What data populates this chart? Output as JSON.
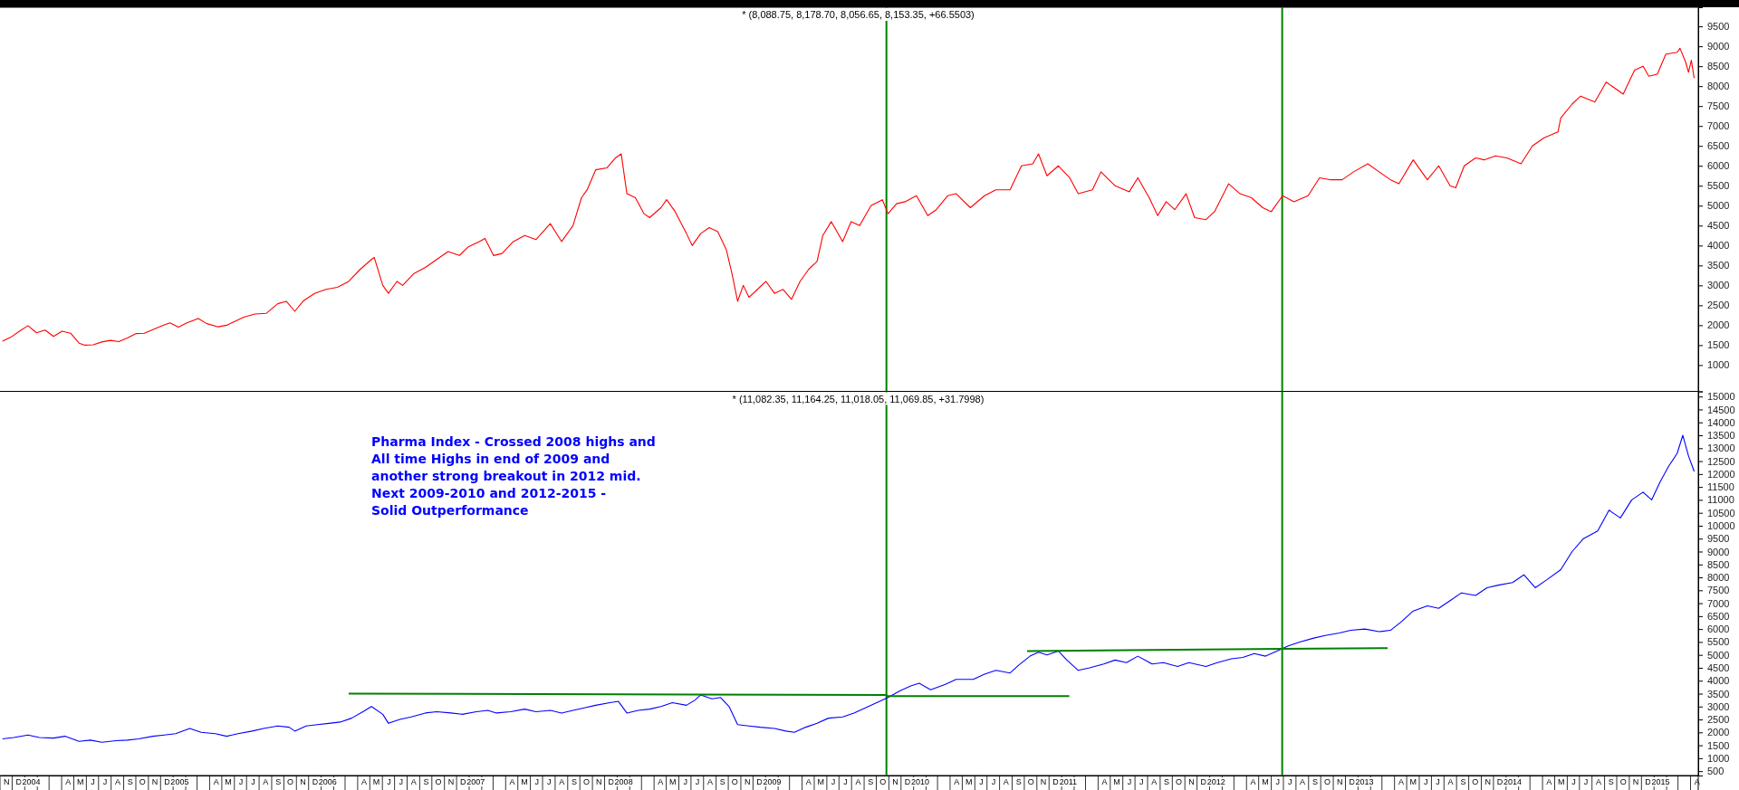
{
  "chart_data": [
    {
      "type": "line",
      "title": "* (8,088.75, 8,178.70, 8,056.65, 8,153.35, +66.5503)",
      "xlim": [
        "2003-11-01",
        "2015-04-20"
      ],
      "ylim": [
        340,
        9980
      ],
      "yticks": [
        1000,
        1500,
        2000,
        2500,
        3000,
        3500,
        4000,
        4500,
        5000,
        5500,
        6000,
        6500,
        7000,
        7500,
        8000,
        8500,
        9000,
        9500
      ],
      "tick_labels": "y",
      "grid": false,
      "ref_lines": [
        {
          "axis": "x",
          "value": "2009-10-26",
          "color": "#008000"
        },
        {
          "axis": "x",
          "value": "2012-06-28",
          "color": "#008000"
        }
      ],
      "series": [
        {
          "color": "#ff0000",
          "x": [
            "2003-11-07",
            "2003-11-28",
            "2003-12-19",
            "2004-01-09",
            "2004-01-30",
            "2004-02-20",
            "2004-03-12",
            "2004-04-02",
            "2004-04-23",
            "2004-05-14",
            "2004-05-28",
            "2004-06-18",
            "2004-07-09",
            "2004-07-30",
            "2004-08-20",
            "2004-09-10",
            "2004-10-01",
            "2004-10-22",
            "2004-11-12",
            "2004-12-03",
            "2004-12-24",
            "2005-01-14",
            "2005-02-04",
            "2005-03-04",
            "2005-03-25",
            "2005-04-22",
            "2005-05-13",
            "2005-06-03",
            "2005-06-24",
            "2005-07-22",
            "2005-08-19",
            "2005-09-16",
            "2005-10-07",
            "2005-10-28",
            "2005-11-18",
            "2005-12-16",
            "2006-01-13",
            "2006-02-10",
            "2006-03-10",
            "2006-04-07",
            "2006-05-05",
            "2006-05-12",
            "2006-06-02",
            "2006-06-16",
            "2006-07-07",
            "2006-07-21",
            "2006-08-18",
            "2006-09-15",
            "2006-10-13",
            "2006-11-10",
            "2006-12-08",
            "2006-12-29",
            "2007-01-26",
            "2007-02-09",
            "2007-03-02",
            "2007-03-23",
            "2007-04-20",
            "2007-05-18",
            "2007-06-15",
            "2007-07-20",
            "2007-08-17",
            "2007-09-14",
            "2007-10-05",
            "2007-10-19",
            "2007-11-09",
            "2007-12-07",
            "2007-12-28",
            "2008-01-11",
            "2008-01-25",
            "2008-02-15",
            "2008-03-07",
            "2008-03-21",
            "2008-04-18",
            "2008-05-02",
            "2008-05-23",
            "2008-06-20",
            "2008-07-04",
            "2008-07-25",
            "2008-08-15",
            "2008-09-05",
            "2008-09-26",
            "2008-10-10",
            "2008-10-24",
            "2008-11-07",
            "2008-11-21",
            "2008-12-12",
            "2009-01-02",
            "2009-01-23",
            "2009-02-13",
            "2009-03-06",
            "2009-03-27",
            "2009-04-17",
            "2009-05-08",
            "2009-05-22",
            "2009-06-12",
            "2009-07-10",
            "2009-07-31",
            "2009-08-21",
            "2009-09-18",
            "2009-10-16",
            "2009-10-30",
            "2009-11-20",
            "2009-12-11",
            "2010-01-08",
            "2010-02-05",
            "2010-02-26",
            "2010-03-26",
            "2010-04-16",
            "2010-05-21",
            "2010-06-25",
            "2010-07-23",
            "2010-08-27",
            "2010-09-24",
            "2010-10-22",
            "2010-11-05",
            "2010-11-26",
            "2010-12-24",
            "2011-01-21",
            "2011-02-11",
            "2011-03-18",
            "2011-04-08",
            "2011-05-13",
            "2011-06-17",
            "2011-07-08",
            "2011-08-05",
            "2011-08-26",
            "2011-09-16",
            "2011-10-07",
            "2011-11-04",
            "2011-11-25",
            "2011-12-23",
            "2012-01-13",
            "2012-02-17",
            "2012-03-16",
            "2012-04-13",
            "2012-05-11",
            "2012-06-01",
            "2012-06-29",
            "2012-07-27",
            "2012-08-31",
            "2012-09-28",
            "2012-10-26",
            "2012-11-23",
            "2012-12-21",
            "2013-01-25",
            "2013-02-22",
            "2013-03-22",
            "2013-04-12",
            "2013-05-17",
            "2013-06-21",
            "2013-07-19",
            "2013-08-16",
            "2013-08-30",
            "2013-09-20",
            "2013-10-18",
            "2013-11-08",
            "2013-12-06",
            "2014-01-03",
            "2014-02-07",
            "2014-03-07",
            "2014-04-04",
            "2014-05-09",
            "2014-05-16",
            "2014-06-13",
            "2014-07-04",
            "2014-08-08",
            "2014-09-05",
            "2014-10-17",
            "2014-11-14",
            "2014-12-05",
            "2014-12-19",
            "2015-01-09",
            "2015-01-30",
            "2015-02-27",
            "2015-03-06",
            "2015-03-20",
            "2015-03-27",
            "2015-04-03",
            "2015-04-10"
          ],
          "values": [
            1600,
            1700,
            1850,
            1990,
            1810,
            1880,
            1720,
            1850,
            1800,
            1550,
            1500,
            1510,
            1580,
            1620,
            1590,
            1680,
            1790,
            1800,
            1890,
            1980,
            2060,
            1950,
            2060,
            2170,
            2040,
            1960,
            2000,
            2100,
            2200,
            2280,
            2300,
            2540,
            2600,
            2350,
            2610,
            2800,
            2900,
            2950,
            3100,
            3400,
            3650,
            3700,
            3000,
            2800,
            3100,
            3000,
            3300,
            3450,
            3650,
            3850,
            3750,
            3960,
            4100,
            4180,
            3750,
            3800,
            4100,
            4250,
            4150,
            4550,
            4100,
            4500,
            5200,
            5400,
            5900,
            5950,
            6200,
            6300,
            5300,
            5200,
            4800,
            4700,
            4950,
            5150,
            4850,
            4300,
            4000,
            4300,
            4450,
            4350,
            3900,
            3300,
            2600,
            3000,
            2700,
            2900,
            3100,
            2800,
            2900,
            2650,
            3100,
            3400,
            3600,
            4250,
            4600,
            4100,
            4600,
            4500,
            5000,
            5150,
            4800,
            5050,
            5100,
            5250,
            4750,
            4900,
            5250,
            5300,
            4950,
            5250,
            5400,
            5400,
            6000,
            6050,
            6300,
            5750,
            6000,
            5700,
            5300,
            5400,
            5850,
            5500,
            5350,
            5700,
            5200,
            4750,
            5100,
            4900,
            5300,
            4700,
            4650,
            4850,
            5550,
            5300,
            5200,
            4950,
            4850,
            5250,
            5100,
            5250,
            5700,
            5650,
            5650,
            5850,
            6050,
            5850,
            5650,
            5550,
            6150,
            5650,
            6000,
            5500,
            5450,
            6000,
            6200,
            6150,
            6250,
            6200,
            6050,
            6500,
            6700,
            6850,
            7200,
            7550,
            7750,
            7600,
            8100,
            7800,
            8400,
            8500,
            8250,
            8300,
            8800,
            8850,
            8950,
            8600,
            8350,
            8650,
            8200
          ]
        }
      ]
    },
    {
      "type": "line",
      "title": "* (11,082.35, 11,164.25, 11,018.05, 11,069.85, +31.7998)",
      "xlim": [
        "2003-11-01",
        "2015-04-20"
      ],
      "ylim": [
        330,
        15200
      ],
      "yticks": [
        500,
        1000,
        1500,
        2000,
        2500,
        3000,
        3500,
        4000,
        4500,
        5000,
        5500,
        6000,
        6500,
        7000,
        7500,
        8000,
        8500,
        9000,
        9500,
        10000,
        10500,
        11000,
        11500,
        12000,
        12500,
        13000,
        13500,
        14000,
        14500,
        15000
      ],
      "grid": false,
      "xticks": [
        {
          "value": "2003-11-16",
          "label": "N"
        },
        {
          "value": "2003-12-16",
          "label": "D"
        },
        {
          "value": "2004-01-16",
          "label": "2004"
        },
        {
          "value": "2004-02-16",
          "label": null
        },
        {
          "value": "2004-03-16",
          "label": null
        },
        {
          "value": "2004-04-16",
          "label": "A"
        },
        {
          "value": "2004-05-16",
          "label": "M"
        },
        {
          "value": "2004-06-16",
          "label": "J"
        },
        {
          "value": "2004-07-16",
          "label": "J"
        },
        {
          "value": "2004-08-16",
          "label": "A"
        },
        {
          "value": "2004-09-16",
          "label": "S"
        },
        {
          "value": "2004-10-16",
          "label": "O"
        },
        {
          "value": "2004-11-16",
          "label": "N"
        },
        {
          "value": "2004-12-16",
          "label": "D"
        },
        {
          "value": "2005-01-16",
          "label": "2005"
        },
        {
          "value": "2005-02-16",
          "label": null
        },
        {
          "value": "2005-03-16",
          "label": null
        },
        {
          "value": "2005-04-16",
          "label": "A"
        },
        {
          "value": "2005-05-16",
          "label": "M"
        },
        {
          "value": "2005-06-16",
          "label": "J"
        },
        {
          "value": "2005-07-16",
          "label": "J"
        },
        {
          "value": "2005-08-16",
          "label": "A"
        },
        {
          "value": "2005-09-16",
          "label": "S"
        },
        {
          "value": "2005-10-16",
          "label": "O"
        },
        {
          "value": "2005-11-16",
          "label": "N"
        },
        {
          "value": "2005-12-16",
          "label": "D"
        },
        {
          "value": "2006-01-16",
          "label": "2006"
        },
        {
          "value": "2006-02-16",
          "label": null
        },
        {
          "value": "2006-03-16",
          "label": null
        },
        {
          "value": "2006-04-16",
          "label": "A"
        },
        {
          "value": "2006-05-16",
          "label": "M"
        },
        {
          "value": "2006-06-16",
          "label": "J"
        },
        {
          "value": "2006-07-16",
          "label": "J"
        },
        {
          "value": "2006-08-16",
          "label": "A"
        },
        {
          "value": "2006-09-16",
          "label": "S"
        },
        {
          "value": "2006-10-16",
          "label": "O"
        },
        {
          "value": "2006-11-16",
          "label": "N"
        },
        {
          "value": "2006-12-16",
          "label": "D"
        },
        {
          "value": "2007-01-16",
          "label": "2007"
        },
        {
          "value": "2007-02-16",
          "label": null
        },
        {
          "value": "2007-03-16",
          "label": null
        },
        {
          "value": "2007-04-16",
          "label": "A"
        },
        {
          "value": "2007-05-16",
          "label": "M"
        },
        {
          "value": "2007-06-16",
          "label": "J"
        },
        {
          "value": "2007-07-16",
          "label": "J"
        },
        {
          "value": "2007-08-16",
          "label": "A"
        },
        {
          "value": "2007-09-16",
          "label": "S"
        },
        {
          "value": "2007-10-16",
          "label": "O"
        },
        {
          "value": "2007-11-16",
          "label": "N"
        },
        {
          "value": "2007-12-16",
          "label": "D"
        },
        {
          "value": "2008-01-16",
          "label": "2008"
        },
        {
          "value": "2008-02-16",
          "label": null
        },
        {
          "value": "2008-03-16",
          "label": null
        },
        {
          "value": "2008-04-16",
          "label": "A"
        },
        {
          "value": "2008-05-16",
          "label": "M"
        },
        {
          "value": "2008-06-16",
          "label": "J"
        },
        {
          "value": "2008-07-16",
          "label": "J"
        },
        {
          "value": "2008-08-16",
          "label": "A"
        },
        {
          "value": "2008-09-16",
          "label": "S"
        },
        {
          "value": "2008-10-16",
          "label": "O"
        },
        {
          "value": "2008-11-16",
          "label": "N"
        },
        {
          "value": "2008-12-16",
          "label": "D"
        },
        {
          "value": "2009-01-16",
          "label": "2009"
        },
        {
          "value": "2009-02-16",
          "label": null
        },
        {
          "value": "2009-03-16",
          "label": null
        },
        {
          "value": "2009-04-16",
          "label": "A"
        },
        {
          "value": "2009-05-16",
          "label": "M"
        },
        {
          "value": "2009-06-16",
          "label": "J"
        },
        {
          "value": "2009-07-16",
          "label": "J"
        },
        {
          "value": "2009-08-16",
          "label": "A"
        },
        {
          "value": "2009-09-16",
          "label": "S"
        },
        {
          "value": "2009-10-16",
          "label": "O"
        },
        {
          "value": "2009-11-16",
          "label": "N"
        },
        {
          "value": "2009-12-16",
          "label": "D"
        },
        {
          "value": "2010-01-16",
          "label": "2010"
        },
        {
          "value": "2010-02-16",
          "label": null
        },
        {
          "value": "2010-03-16",
          "label": null
        },
        {
          "value": "2010-04-16",
          "label": "A"
        },
        {
          "value": "2010-05-16",
          "label": "M"
        },
        {
          "value": "2010-06-16",
          "label": "J"
        },
        {
          "value": "2010-07-16",
          "label": "J"
        },
        {
          "value": "2010-08-16",
          "label": "A"
        },
        {
          "value": "2010-09-16",
          "label": "S"
        },
        {
          "value": "2010-10-16",
          "label": "O"
        },
        {
          "value": "2010-11-16",
          "label": "N"
        },
        {
          "value": "2010-12-16",
          "label": "D"
        },
        {
          "value": "2011-01-16",
          "label": "2011"
        },
        {
          "value": "2011-02-16",
          "label": null
        },
        {
          "value": "2011-03-16",
          "label": null
        },
        {
          "value": "2011-04-16",
          "label": "A"
        },
        {
          "value": "2011-05-16",
          "label": "M"
        },
        {
          "value": "2011-06-16",
          "label": "J"
        },
        {
          "value": "2011-07-16",
          "label": "J"
        },
        {
          "value": "2011-08-16",
          "label": "A"
        },
        {
          "value": "2011-09-16",
          "label": "S"
        },
        {
          "value": "2011-10-16",
          "label": "O"
        },
        {
          "value": "2011-11-16",
          "label": "N"
        },
        {
          "value": "2011-12-16",
          "label": "D"
        },
        {
          "value": "2012-01-16",
          "label": "2012"
        },
        {
          "value": "2012-02-16",
          "label": null
        },
        {
          "value": "2012-03-16",
          "label": null
        },
        {
          "value": "2012-04-16",
          "label": "A"
        },
        {
          "value": "2012-05-16",
          "label": "M"
        },
        {
          "value": "2012-06-16",
          "label": "J"
        },
        {
          "value": "2012-07-16",
          "label": "J"
        },
        {
          "value": "2012-08-16",
          "label": "A"
        },
        {
          "value": "2012-09-16",
          "label": "S"
        },
        {
          "value": "2012-10-16",
          "label": "O"
        },
        {
          "value": "2012-11-16",
          "label": "N"
        },
        {
          "value": "2012-12-16",
          "label": "D"
        },
        {
          "value": "2013-01-16",
          "label": "2013"
        },
        {
          "value": "2013-02-16",
          "label": null
        },
        {
          "value": "2013-03-16",
          "label": null
        },
        {
          "value": "2013-04-16",
          "label": "A"
        },
        {
          "value": "2013-05-16",
          "label": "M"
        },
        {
          "value": "2013-06-16",
          "label": "J"
        },
        {
          "value": "2013-07-16",
          "label": "J"
        },
        {
          "value": "2013-08-16",
          "label": "A"
        },
        {
          "value": "2013-09-16",
          "label": "S"
        },
        {
          "value": "2013-10-16",
          "label": "O"
        },
        {
          "value": "2013-11-16",
          "label": "N"
        },
        {
          "value": "2013-12-16",
          "label": "D"
        },
        {
          "value": "2014-01-16",
          "label": "2014"
        },
        {
          "value": "2014-02-16",
          "label": null
        },
        {
          "value": "2014-03-16",
          "label": null
        },
        {
          "value": "2014-04-16",
          "label": "A"
        },
        {
          "value": "2014-05-16",
          "label": "M"
        },
        {
          "value": "2014-06-16",
          "label": "J"
        },
        {
          "value": "2014-07-16",
          "label": "J"
        },
        {
          "value": "2014-08-16",
          "label": "A"
        },
        {
          "value": "2014-09-16",
          "label": "S"
        },
        {
          "value": "2014-10-16",
          "label": "O"
        },
        {
          "value": "2014-11-16",
          "label": "N"
        },
        {
          "value": "2014-12-16",
          "label": "D"
        },
        {
          "value": "2015-01-16",
          "label": "2015"
        },
        {
          "value": "2015-02-16",
          "label": null
        },
        {
          "value": "2015-03-16",
          "label": null
        },
        {
          "value": "2015-04-16",
          "label": "A"
        }
      ],
      "ref_lines": [
        {
          "axis": "x",
          "value": "2009-10-26",
          "color": "#008000"
        },
        {
          "axis": "x",
          "value": "2012-06-28",
          "color": "#008000"
        }
      ],
      "annotations": [
        "Pharma Index - Crossed 2008 highs and\nAll time Highs in end of 2009 and\nanother strong breakout in 2012 mid.\nNext 2009-2010 and 2012-2015 -\nSolid Outperformance"
      ],
      "series": [
        {
          "color": "#0000ff",
          "x": [
            "2003-11-07",
            "2003-12-05",
            "2004-01-09",
            "2004-02-06",
            "2004-03-12",
            "2004-04-09",
            "2004-05-14",
            "2004-06-11",
            "2004-07-09",
            "2004-08-13",
            "2004-09-10",
            "2004-10-08",
            "2004-11-12",
            "2004-12-10",
            "2005-01-07",
            "2005-02-11",
            "2005-03-11",
            "2005-04-15",
            "2005-05-13",
            "2005-06-10",
            "2005-07-15",
            "2005-08-12",
            "2005-09-16",
            "2005-10-14",
            "2005-10-28",
            "2005-11-25",
            "2005-12-23",
            "2006-01-20",
            "2006-02-17",
            "2006-03-17",
            "2006-04-14",
            "2006-05-05",
            "2006-06-02",
            "2006-06-16",
            "2006-07-14",
            "2006-08-11",
            "2006-09-15",
            "2006-10-13",
            "2006-11-17",
            "2006-12-15",
            "2007-01-19",
            "2007-02-16",
            "2007-03-09",
            "2007-04-13",
            "2007-05-18",
            "2007-06-15",
            "2007-07-20",
            "2007-08-17",
            "2007-09-14",
            "2007-10-12",
            "2007-11-09",
            "2007-12-14",
            "2008-01-04",
            "2008-01-25",
            "2008-02-22",
            "2008-03-21",
            "2008-04-18",
            "2008-05-16",
            "2008-06-20",
            "2008-07-11",
            "2008-07-25",
            "2008-08-22",
            "2008-09-12",
            "2008-10-03",
            "2008-10-24",
            "2008-11-21",
            "2008-12-19",
            "2009-01-23",
            "2009-02-20",
            "2009-03-13",
            "2009-04-10",
            "2009-05-08",
            "2009-06-05",
            "2009-07-10",
            "2009-08-07",
            "2009-09-04",
            "2009-10-02",
            "2009-10-30",
            "2009-11-27",
            "2009-12-25",
            "2010-01-15",
            "2010-02-12",
            "2010-03-19",
            "2010-04-16",
            "2010-05-28",
            "2010-06-25",
            "2010-07-23",
            "2010-08-27",
            "2010-09-17",
            "2010-10-15",
            "2010-11-05",
            "2010-11-26",
            "2010-12-24",
            "2011-01-14",
            "2011-02-11",
            "2011-03-11",
            "2011-04-15",
            "2011-05-13",
            "2011-06-10",
            "2011-07-08",
            "2011-08-12",
            "2011-09-09",
            "2011-10-14",
            "2011-11-11",
            "2011-12-23",
            "2012-01-20",
            "2012-02-24",
            "2012-03-23",
            "2012-04-20",
            "2012-05-18",
            "2012-06-15",
            "2012-07-13",
            "2012-08-10",
            "2012-09-14",
            "2012-10-12",
            "2012-11-16",
            "2012-12-14",
            "2013-01-18",
            "2013-02-22",
            "2013-03-22",
            "2013-04-19",
            "2013-05-17",
            "2013-06-21",
            "2013-07-19",
            "2013-08-16",
            "2013-09-13",
            "2013-10-18",
            "2013-11-15",
            "2013-12-13",
            "2014-01-17",
            "2014-02-14",
            "2014-03-14",
            "2014-04-11",
            "2014-05-16",
            "2014-06-13",
            "2014-07-11",
            "2014-08-15",
            "2014-09-12",
            "2014-10-10",
            "2014-11-07",
            "2014-12-05",
            "2014-12-26",
            "2015-01-16",
            "2015-02-06",
            "2015-02-27",
            "2015-03-13",
            "2015-03-27",
            "2015-04-10"
          ],
          "values": [
            1750,
            1800,
            1900,
            1800,
            1780,
            1850,
            1650,
            1700,
            1620,
            1680,
            1700,
            1750,
            1850,
            1900,
            1950,
            2150,
            2000,
            1950,
            1850,
            1950,
            2050,
            2150,
            2250,
            2200,
            2050,
            2250,
            2300,
            2350,
            2400,
            2550,
            2800,
            3000,
            2700,
            2350,
            2500,
            2600,
            2750,
            2800,
            2750,
            2700,
            2800,
            2850,
            2750,
            2800,
            2900,
            2800,
            2850,
            2750,
            2850,
            2950,
            3050,
            3150,
            3200,
            2750,
            2850,
            2900,
            3000,
            3150,
            3050,
            3250,
            3450,
            3300,
            3350,
            3000,
            2300,
            2250,
            2200,
            2150,
            2050,
            2000,
            2200,
            2350,
            2550,
            2600,
            2750,
            2950,
            3150,
            3350,
            3600,
            3800,
            3900,
            3650,
            3850,
            4050,
            4050,
            4250,
            4400,
            4300,
            4600,
            4950,
            5100,
            5000,
            5150,
            4800,
            4400,
            4500,
            4650,
            4800,
            4700,
            4950,
            4650,
            4700,
            4550,
            4700,
            4550,
            4700,
            4850,
            4900,
            5050,
            4950,
            5150,
            5350,
            5500,
            5650,
            5750,
            5850,
            5950,
            6000,
            5900,
            5950,
            6300,
            6700,
            6900,
            6800,
            7100,
            7400,
            7300,
            7600,
            7700,
            7800,
            8100,
            7600,
            7900,
            8300,
            9000,
            9500,
            9800,
            10600,
            10300,
            11000,
            11300,
            11000,
            11700,
            12300,
            12800,
            13500,
            12700,
            12100
          ]
        },
        {
          "type": "line",
          "color": "#008000",
          "x": [
            "2006-03-10",
            "2009-10-26",
            "2009-10-26",
            "2011-01-20"
          ],
          "values": [
            3500,
            3450,
            3400,
            3400
          ]
        },
        {
          "type": "line",
          "color": "#008000",
          "x": [
            "2010-10-08",
            "2012-06-28",
            "2013-03-15"
          ],
          "values": [
            5150,
            5230,
            5260
          ]
        }
      ]
    }
  ]
}
